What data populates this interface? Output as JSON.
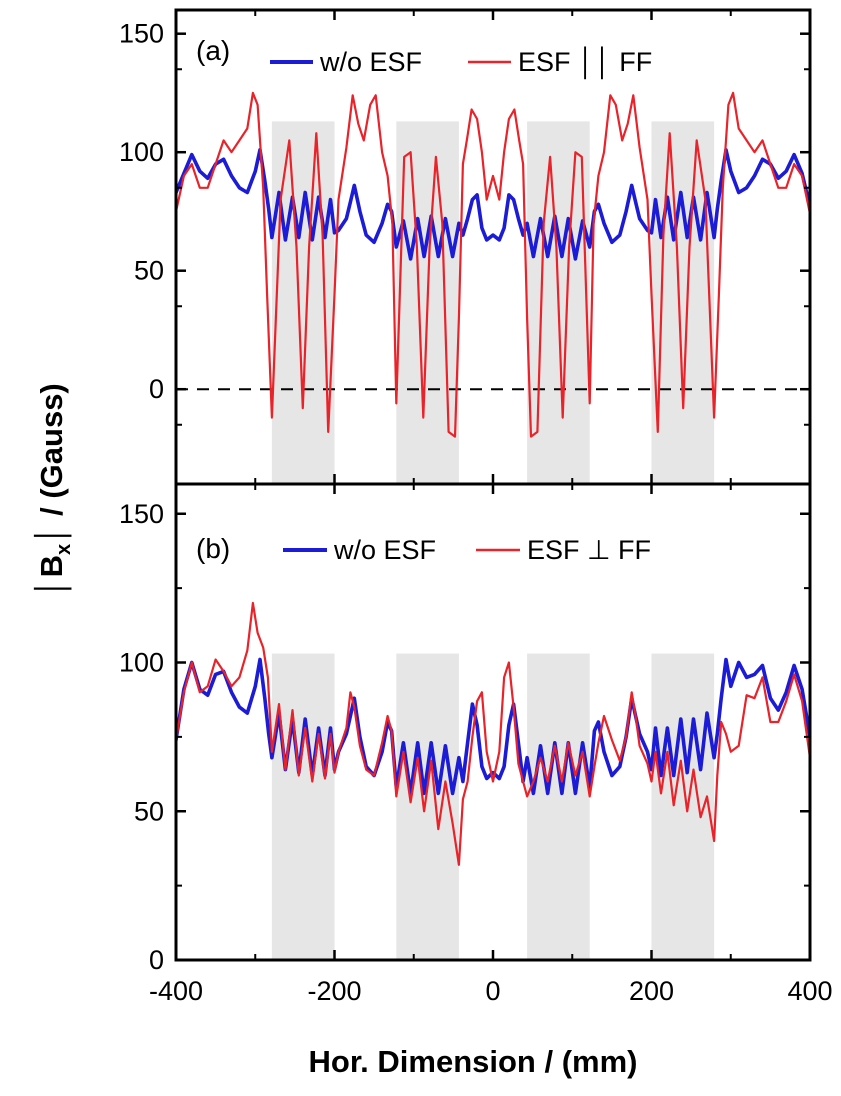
{
  "chart_data": [
    {
      "type": "line",
      "panel_label": "(a)",
      "xlim": [
        -400,
        400
      ],
      "ylim": [
        -40,
        160
      ],
      "yticks": [
        0,
        50,
        100,
        150
      ],
      "ytick_labels": [
        "0",
        "50",
        "100",
        "150"
      ],
      "xticks": [
        -400,
        -200,
        0,
        200,
        400
      ],
      "reference_line": {
        "y": 0,
        "style": "dashed"
      },
      "shaded_regions": [
        [
          -279,
          -200
        ],
        [
          -122,
          -43
        ],
        [
          43,
          122
        ],
        [
          200,
          279
        ]
      ],
      "series": [
        {
          "name": "w/o ESF",
          "color": "#1c1cd6",
          "x": [
            -400,
            -390,
            -380,
            -370,
            -360,
            -350,
            -340,
            -330,
            -320,
            -310,
            -300,
            -294,
            -288,
            -283,
            -279,
            -270,
            -262,
            -253,
            -245,
            -237,
            -228,
            -220,
            -212,
            -205,
            -200,
            -195,
            -185,
            -180,
            -175,
            -168,
            -160,
            -150,
            -140,
            -133,
            -128,
            -122,
            -113,
            -104,
            -95,
            -87,
            -78,
            -69,
            -60,
            -51,
            -43,
            -38,
            -32,
            -26,
            -20,
            -14,
            -8,
            0,
            8,
            14,
            20,
            26,
            32,
            38,
            43,
            51,
            60,
            69,
            78,
            87,
            95,
            104,
            113,
            122,
            128,
            133,
            140,
            150,
            160,
            168,
            175,
            180,
            185,
            195,
            200,
            205,
            212,
            220,
            228,
            237,
            245,
            253,
            262,
            270,
            279,
            283,
            288,
            294,
            300,
            310,
            320,
            330,
            340,
            350,
            360,
            370,
            380,
            390,
            400
          ],
          "y": [
            83,
            91,
            99,
            92,
            89,
            95,
            97,
            90,
            85,
            83,
            92,
            101,
            88,
            76,
            64,
            83,
            63,
            81,
            64,
            83,
            63,
            81,
            64,
            80,
            66,
            67,
            72,
            79,
            86,
            75,
            65,
            62,
            70,
            78,
            75,
            60,
            71,
            55,
            72,
            56,
            73,
            56,
            72,
            56,
            70,
            65,
            72,
            80,
            82,
            68,
            63,
            65,
            63,
            68,
            82,
            80,
            72,
            65,
            70,
            56,
            72,
            56,
            73,
            56,
            72,
            55,
            71,
            60,
            75,
            78,
            70,
            62,
            65,
            75,
            86,
            79,
            72,
            67,
            66,
            80,
            64,
            81,
            63,
            83,
            64,
            81,
            63,
            83,
            64,
            76,
            88,
            101,
            92,
            83,
            85,
            90,
            97,
            95,
            89,
            92,
            99,
            91,
            77
          ]
        },
        {
          "name": "ESF ││ FF",
          "color": "#e8232a",
          "x": [
            -400,
            -390,
            -380,
            -370,
            -360,
            -350,
            -340,
            -330,
            -320,
            -310,
            -303,
            -297,
            -290,
            -285,
            -279,
            -268,
            -257,
            -248,
            -240,
            -232,
            -223,
            -215,
            -208,
            -200,
            -195,
            -185,
            -177,
            -170,
            -163,
            -155,
            -148,
            -140,
            -133,
            -127,
            -122,
            -112,
            -104,
            -96,
            -88,
            -80,
            -72,
            -64,
            -56,
            -48,
            -43,
            -38,
            -33,
            -27,
            -20,
            -14,
            -8,
            0,
            8,
            14,
            20,
            27,
            33,
            38,
            43,
            48,
            56,
            64,
            72,
            80,
            88,
            96,
            104,
            112,
            122,
            127,
            133,
            140,
            148,
            155,
            163,
            170,
            177,
            185,
            195,
            200,
            208,
            215,
            223,
            232,
            240,
            248,
            257,
            268,
            279,
            285,
            290,
            297,
            303,
            310,
            320,
            330,
            340,
            350,
            360,
            370,
            380,
            390,
            400
          ],
          "y": [
            75,
            90,
            95,
            85,
            85,
            95,
            105,
            100,
            105,
            110,
            125,
            120,
            85,
            40,
            -12,
            80,
            105,
            60,
            -8,
            60,
            108,
            65,
            -18,
            40,
            80,
            102,
            124,
            112,
            105,
            120,
            124,
            100,
            90,
            70,
            -6,
            98,
            100,
            60,
            -12,
            60,
            98,
            70,
            -18,
            -20,
            30,
            95,
            105,
            118,
            114,
            100,
            80,
            90,
            80,
            100,
            114,
            118,
            105,
            95,
            30,
            -20,
            -18,
            70,
            98,
            60,
            -12,
            60,
            100,
            98,
            -6,
            70,
            90,
            100,
            124,
            120,
            105,
            112,
            124,
            102,
            80,
            40,
            -18,
            65,
            108,
            60,
            -8,
            60,
            105,
            80,
            -12,
            40,
            85,
            120,
            125,
            110,
            105,
            100,
            105,
            95,
            85,
            85,
            95,
            90,
            74
          ]
        }
      ]
    },
    {
      "type": "line",
      "panel_label": "(b)",
      "xlim": [
        -400,
        400
      ],
      "ylim": [
        0,
        160
      ],
      "yticks": [
        0,
        50,
        100,
        150
      ],
      "ytick_labels": [
        "0",
        "50",
        "100",
        "150"
      ],
      "xticks": [
        -400,
        -200,
        0,
        200,
        400
      ],
      "xtick_labels": [
        "-400",
        "-200",
        "0",
        "200",
        "400"
      ],
      "shaded_regions": [
        [
          -279,
          -200
        ],
        [
          -122,
          -43
        ],
        [
          43,
          122
        ],
        [
          200,
          279
        ]
      ],
      "series": [
        {
          "name": "w/o ESF",
          "color": "#1c1cd6",
          "x": [
            -400,
            -390,
            -380,
            -370,
            -360,
            -350,
            -340,
            -330,
            -320,
            -310,
            -300,
            -294,
            -288,
            -283,
            -279,
            -270,
            -262,
            -253,
            -245,
            -237,
            -228,
            -220,
            -212,
            -205,
            -200,
            -195,
            -185,
            -180,
            -175,
            -168,
            -160,
            -150,
            -140,
            -133,
            -128,
            -122,
            -113,
            -104,
            -95,
            -87,
            -78,
            -69,
            -60,
            -51,
            -43,
            -38,
            -32,
            -26,
            -20,
            -14,
            -8,
            0,
            8,
            14,
            20,
            26,
            32,
            38,
            43,
            51,
            60,
            69,
            78,
            87,
            95,
            104,
            113,
            122,
            128,
            133,
            140,
            150,
            160,
            168,
            175,
            180,
            185,
            195,
            200,
            205,
            212,
            220,
            228,
            237,
            245,
            253,
            262,
            270,
            279,
            283,
            288,
            294,
            300,
            310,
            320,
            330,
            340,
            350,
            360,
            370,
            380,
            390,
            400
          ],
          "y": [
            74,
            91,
            100,
            91,
            89,
            96,
            97,
            90,
            85,
            83,
            92,
            101,
            88,
            76,
            68,
            83,
            64,
            81,
            63,
            81,
            62,
            78,
            62,
            78,
            64,
            70,
            76,
            82,
            88,
            75,
            65,
            62,
            70,
            80,
            77,
            58,
            73,
            56,
            73,
            56,
            73,
            56,
            72,
            56,
            68,
            60,
            73,
            86,
            79,
            65,
            61,
            63,
            61,
            65,
            79,
            86,
            73,
            60,
            68,
            56,
            72,
            56,
            73,
            56,
            73,
            56,
            73,
            58,
            77,
            80,
            70,
            62,
            65,
            75,
            88,
            82,
            76,
            70,
            64,
            78,
            62,
            78,
            62,
            81,
            63,
            81,
            64,
            83,
            68,
            76,
            88,
            101,
            92,
            100,
            95,
            96,
            99,
            88,
            84,
            90,
            99,
            91,
            75
          ]
        },
        {
          "name": "ESF ⊥ FF",
          "color": "#e8232a",
          "x": [
            -400,
            -390,
            -380,
            -370,
            -360,
            -350,
            -340,
            -330,
            -320,
            -310,
            -303,
            -297,
            -290,
            -284,
            -279,
            -270,
            -262,
            -253,
            -245,
            -237,
            -228,
            -220,
            -212,
            -205,
            -200,
            -195,
            -185,
            -180,
            -175,
            -168,
            -160,
            -150,
            -140,
            -133,
            -128,
            -122,
            -113,
            -104,
            -95,
            -87,
            -78,
            -69,
            -60,
            -51,
            -43,
            -38,
            -32,
            -26,
            -20,
            -14,
            -8,
            0,
            8,
            14,
            20,
            26,
            32,
            38,
            43,
            51,
            60,
            69,
            78,
            87,
            95,
            104,
            113,
            122,
            128,
            133,
            140,
            150,
            160,
            168,
            175,
            180,
            185,
            195,
            200,
            205,
            212,
            220,
            228,
            237,
            245,
            253,
            262,
            270,
            279,
            283,
            288,
            294,
            300,
            310,
            320,
            330,
            340,
            350,
            360,
            370,
            380,
            390,
            400
          ],
          "y": [
            74,
            90,
            100,
            90,
            92,
            101,
            97,
            92,
            95,
            104,
            120,
            110,
            105,
            95,
            70,
            86,
            64,
            84,
            62,
            78,
            60,
            76,
            61,
            76,
            63,
            70,
            78,
            90,
            85,
            72,
            64,
            62,
            73,
            82,
            77,
            55,
            70,
            53,
            68,
            50,
            67,
            44,
            60,
            46,
            32,
            54,
            60,
            75,
            87,
            90,
            70,
            60,
            70,
            95,
            100,
            85,
            66,
            60,
            55,
            60,
            68,
            60,
            72,
            60,
            73,
            62,
            70,
            55,
            65,
            73,
            82,
            74,
            67,
            75,
            90,
            82,
            72,
            66,
            60,
            70,
            56,
            70,
            52,
            67,
            50,
            64,
            48,
            55,
            40,
            62,
            80,
            76,
            70,
            72,
            89,
            88,
            95,
            80,
            80,
            87,
            96,
            87,
            68
          ]
        }
      ]
    }
  ],
  "legend_a": {
    "series1": "w/o ESF",
    "series2": "ESF ││ FF"
  },
  "legend_b": {
    "series1": "w/o ESF",
    "series2": "ESF ⊥ FF"
  },
  "axes": {
    "xlabel": "Hor. Dimension / (mm)",
    "ylabel_bar_left": "│",
    "ylabel_b": "B",
    "ylabel_sub": "x",
    "ylabel_bar_right": "│",
    "ylabel_rest": " / (Gauss)"
  },
  "colors": {
    "blue": "#1c1cd6",
    "red": "#e8232a",
    "shade": "#e6e6e6"
  }
}
